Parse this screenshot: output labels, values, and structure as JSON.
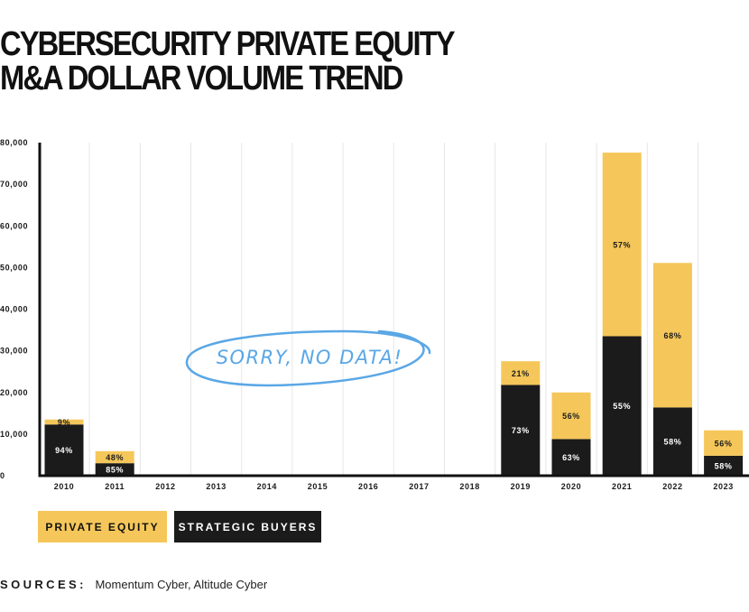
{
  "title_line1": "CYBERSECURITY PRIVATE EQUITY",
  "title_line2": "M&A DOLLAR VOLUME TREND",
  "chart_data": {
    "type": "bar",
    "stacked": true,
    "categories": [
      "2010",
      "2011",
      "2012",
      "2013",
      "2014",
      "2015",
      "2016",
      "2017",
      "2018",
      "2019",
      "2020",
      "2021",
      "2022",
      "2023"
    ],
    "series": [
      {
        "name": "STRATEGIC BUYERS",
        "color": "#1b1b1b",
        "values": [
          12300,
          3000,
          null,
          null,
          null,
          null,
          null,
          null,
          null,
          21800,
          8800,
          33500,
          16400,
          4800
        ],
        "labels": [
          "94%",
          "85%",
          "",
          "",
          "",
          "",
          "",
          "",
          "",
          "73%",
          "63%",
          "55%",
          "58%",
          "58%"
        ]
      },
      {
        "name": "PRIVATE EQUITY",
        "color": "#f5c75a",
        "values": [
          1200,
          2900,
          null,
          null,
          null,
          null,
          null,
          null,
          null,
          5700,
          11200,
          44100,
          34700,
          6100
        ],
        "labels": [
          "9%",
          "48%",
          "",
          "",
          "",
          "",
          "",
          "",
          "",
          "21%",
          "56%",
          "57%",
          "68%",
          "56%"
        ]
      }
    ],
    "ylim": [
      0,
      80000
    ],
    "yticks": [
      0,
      10000,
      20000,
      30000,
      40000,
      50000,
      60000,
      70000,
      80000
    ],
    "ytick_labels": [
      "0",
      "10,000",
      "20,000",
      "30,000",
      "40,000",
      "50,000",
      "60,000",
      "70,000",
      "80,000"
    ],
    "grid": "vertical",
    "annotation": "SORRY, NO DATA!",
    "annotation_color": "#5aa7e6"
  },
  "legend": {
    "private_equity": "PRIVATE EQUITY",
    "strategic_buyers": "STRATEGIC BUYERS"
  },
  "sources": {
    "label": "SOURCES:",
    "text": "Momentum Cyber, Altitude Cyber"
  }
}
